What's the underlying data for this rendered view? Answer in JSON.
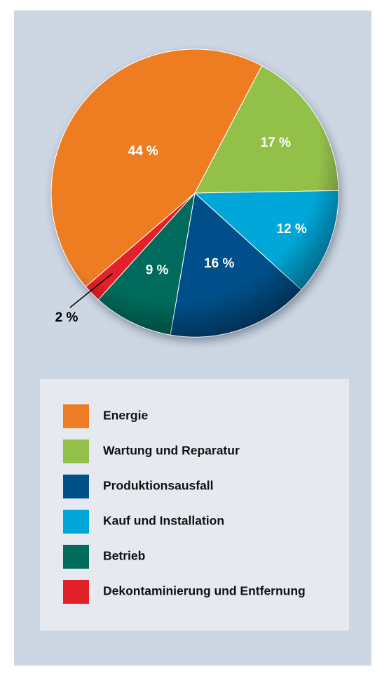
{
  "chart_data": {
    "type": "pie",
    "categories": [
      "Energie",
      "Wartung und Reparatur",
      "Produktionsausfall",
      "Kauf und Installation",
      "Betrieb",
      "Dekontaminierung und Entfernung"
    ],
    "values": [
      44,
      17,
      16,
      12,
      9,
      2
    ],
    "value_labels": [
      "44 %",
      "17 %",
      "16 %",
      "12 %",
      "9 %",
      "2 %"
    ],
    "colors": [
      "#ee7d23",
      "#93c04a",
      "#00508a",
      "#00a7d8",
      "#006b5b",
      "#e2202a"
    ],
    "legend": "bottom"
  }
}
